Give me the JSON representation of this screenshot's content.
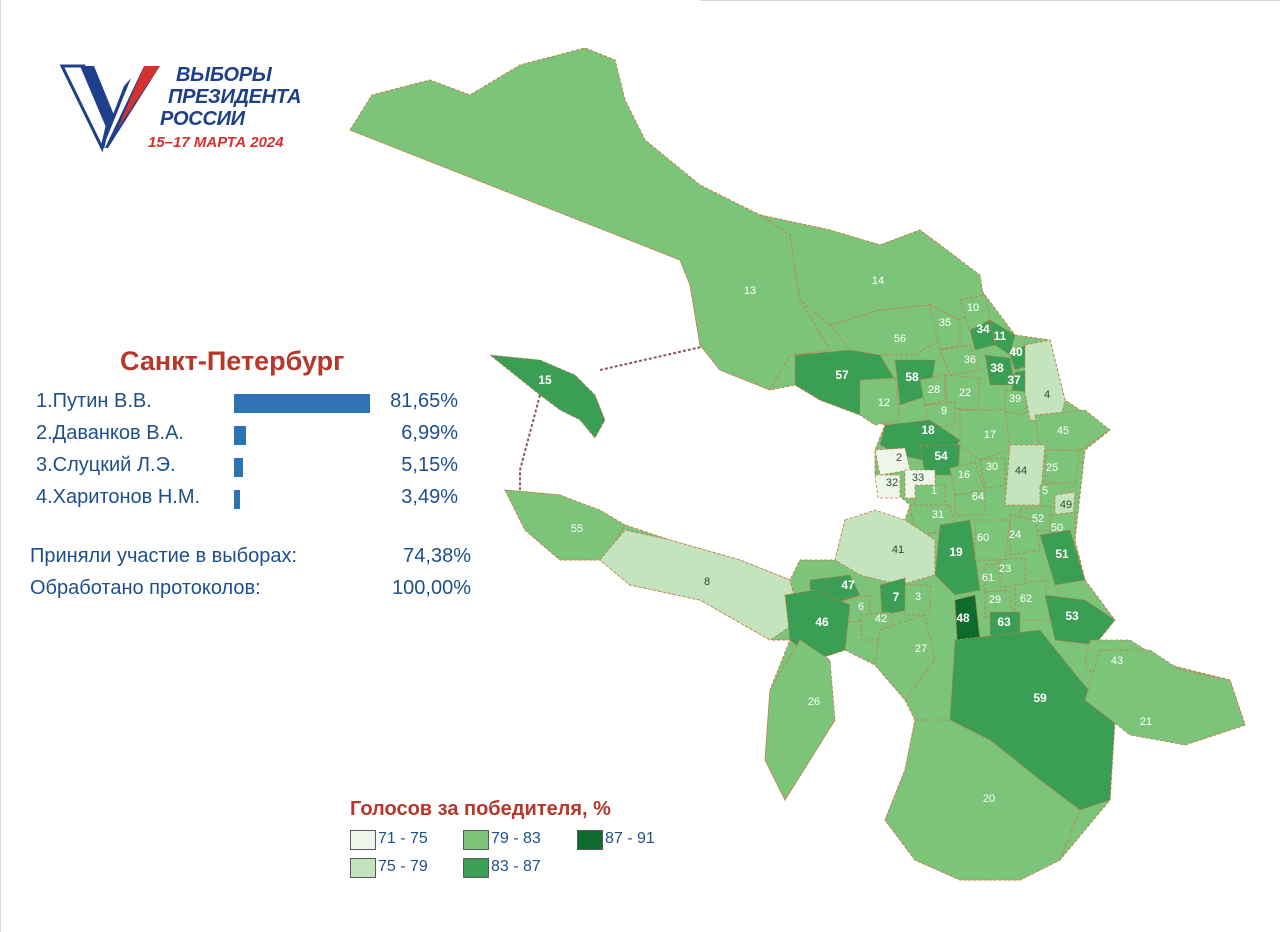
{
  "logo": {
    "line1": "ВЫБОРЫ",
    "line2": "ПРЕЗИДЕНТА",
    "line3": "РОССИИ",
    "date": "15–17 МАРТА 2024",
    "colors": {
      "white": "#ffffff",
      "blue": "#1e3f8a",
      "red": "#d8302f"
    }
  },
  "results": {
    "city": "Санкт-Петербург",
    "candidates": [
      {
        "label": "1.Путин В.В.",
        "percent_text": "81,65%",
        "value": 81.65
      },
      {
        "label": "2.Даванков В.А.",
        "percent_text": "6,99%",
        "value": 6.99
      },
      {
        "label": "3.Слуцкий Л.Э.",
        "percent_text": "5,15%",
        "value": 5.15
      },
      {
        "label": "4.Харитонов Н.М.",
        "percent_text": "3,49%",
        "value": 3.49
      }
    ],
    "bar_color": "#2e74b5",
    "turnout_label": "Приняли участие в выборах:",
    "turnout_value": "74,38%",
    "protocols_label": "Обработано протоколов:",
    "protocols_value": "100,00%"
  },
  "legend": {
    "title": "Голосов за победителя, %",
    "items": [
      {
        "label": "71 - 75",
        "color": "#eef6ec"
      },
      {
        "label": "75 - 79",
        "color": "#c3e4bd"
      },
      {
        "label": "79 - 83",
        "color": "#7cc47a"
      },
      {
        "label": "83 - 87",
        "color": "#3a9e54"
      },
      {
        "label": "87 - 91",
        "color": "#0f6a2e"
      }
    ]
  },
  "map": {
    "border_color": "#c97a4a",
    "districts": [
      {
        "id": "13",
        "cls": 2
      },
      {
        "id": "14",
        "cls": 2
      },
      {
        "id": "15",
        "cls": 3
      },
      {
        "id": "57",
        "cls": 3
      },
      {
        "id": "56",
        "cls": 2
      },
      {
        "id": "35",
        "cls": 2
      },
      {
        "id": "10",
        "cls": 2
      },
      {
        "id": "34",
        "cls": 3
      },
      {
        "id": "11",
        "cls": 3
      },
      {
        "id": "40",
        "cls": 3
      },
      {
        "id": "36",
        "cls": 2
      },
      {
        "id": "38",
        "cls": 3
      },
      {
        "id": "37",
        "cls": 3
      },
      {
        "id": "58",
        "cls": 3
      },
      {
        "id": "28",
        "cls": 2
      },
      {
        "id": "22",
        "cls": 2
      },
      {
        "id": "39",
        "cls": 2
      },
      {
        "id": "4",
        "cls": 1
      },
      {
        "id": "12",
        "cls": 2
      },
      {
        "id": "9",
        "cls": 2
      },
      {
        "id": "18",
        "cls": 3
      },
      {
        "id": "17",
        "cls": 2
      },
      {
        "id": "45",
        "cls": 2
      },
      {
        "id": "2",
        "cls": 0
      },
      {
        "id": "54",
        "cls": 3
      },
      {
        "id": "16",
        "cls": 2
      },
      {
        "id": "30",
        "cls": 2
      },
      {
        "id": "44",
        "cls": 1
      },
      {
        "id": "25",
        "cls": 2
      },
      {
        "id": "32",
        "cls": 0
      },
      {
        "id": "33",
        "cls": 0
      },
      {
        "id": "1",
        "cls": 2
      },
      {
        "id": "64",
        "cls": 2
      },
      {
        "id": "5",
        "cls": 2
      },
      {
        "id": "49",
        "cls": 1
      },
      {
        "id": "52",
        "cls": 2
      },
      {
        "id": "50",
        "cls": 2
      },
      {
        "id": "31",
        "cls": 2
      },
      {
        "id": "55",
        "cls": 2
      },
      {
        "id": "41",
        "cls": 1
      },
      {
        "id": "19",
        "cls": 3
      },
      {
        "id": "60",
        "cls": 2
      },
      {
        "id": "24",
        "cls": 2
      },
      {
        "id": "51",
        "cls": 3
      },
      {
        "id": "8",
        "cls": 1
      },
      {
        "id": "47",
        "cls": 3
      },
      {
        "id": "61",
        "cls": 2
      },
      {
        "id": "23",
        "cls": 2
      },
      {
        "id": "6",
        "cls": 2
      },
      {
        "id": "7",
        "cls": 3
      },
      {
        "id": "3",
        "cls": 2
      },
      {
        "id": "29",
        "cls": 2
      },
      {
        "id": "62",
        "cls": 2
      },
      {
        "id": "42",
        "cls": 2
      },
      {
        "id": "46",
        "cls": 3
      },
      {
        "id": "48",
        "cls": 4
      },
      {
        "id": "63",
        "cls": 3
      },
      {
        "id": "53",
        "cls": 3
      },
      {
        "id": "27",
        "cls": 2
      },
      {
        "id": "43",
        "cls": 2
      },
      {
        "id": "26",
        "cls": 2
      },
      {
        "id": "59",
        "cls": 3
      },
      {
        "id": "21",
        "cls": 2
      },
      {
        "id": "20",
        "cls": 2
      }
    ]
  }
}
